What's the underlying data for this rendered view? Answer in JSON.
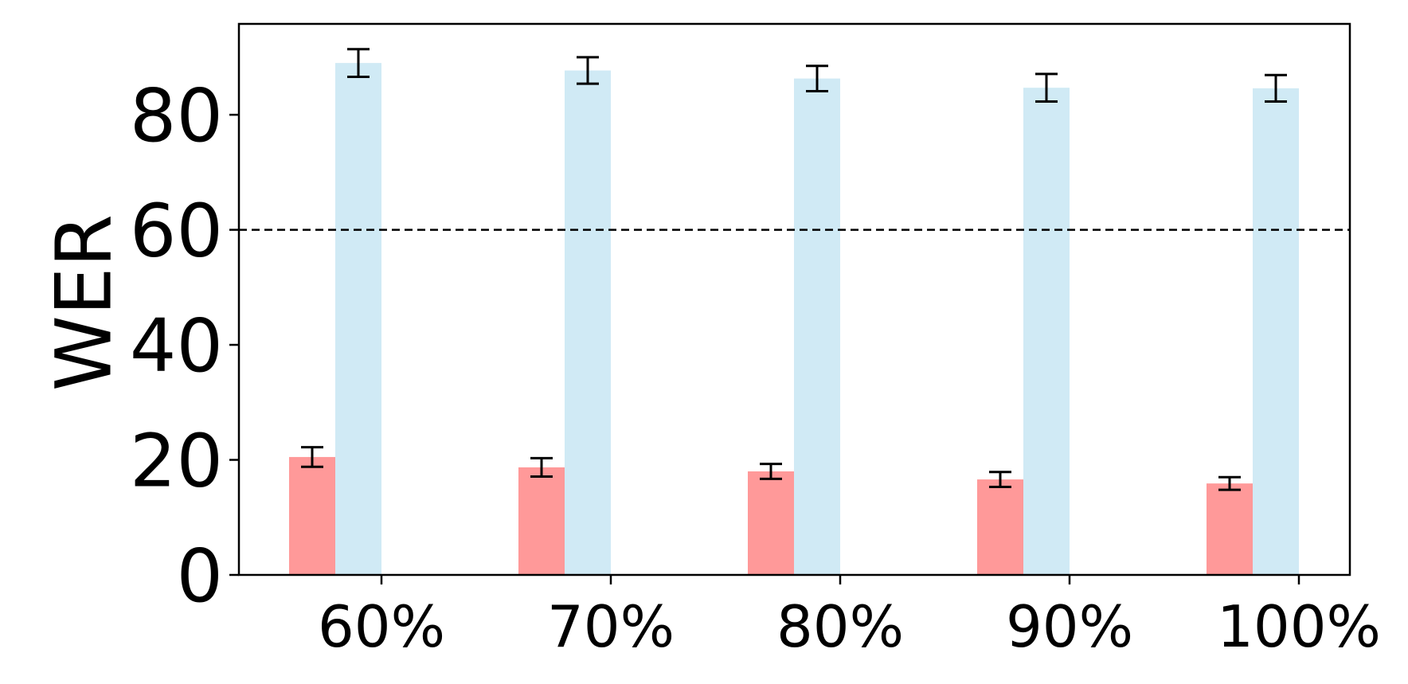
{
  "chart_data": {
    "type": "bar",
    "y_label": "WER",
    "categories": [
      "60%",
      "70%",
      "80%",
      "90%",
      "100%"
    ],
    "series": [
      {
        "color": "#ff9999",
        "values": [
          20.5,
          18.7,
          18.0,
          16.6,
          15.9
        ],
        "errors": [
          1.7,
          1.6,
          1.3,
          1.3,
          1.1
        ]
      },
      {
        "color": "#d0eaf5",
        "values": [
          89.0,
          87.7,
          86.3,
          84.7,
          84.6
        ],
        "errors": [
          2.4,
          2.3,
          2.2,
          2.4,
          2.3
        ]
      }
    ],
    "ylim": [
      0,
      95.8
    ],
    "yticks": [
      0,
      20,
      40,
      60,
      80
    ],
    "reference_line": 60,
    "grid": false
  }
}
